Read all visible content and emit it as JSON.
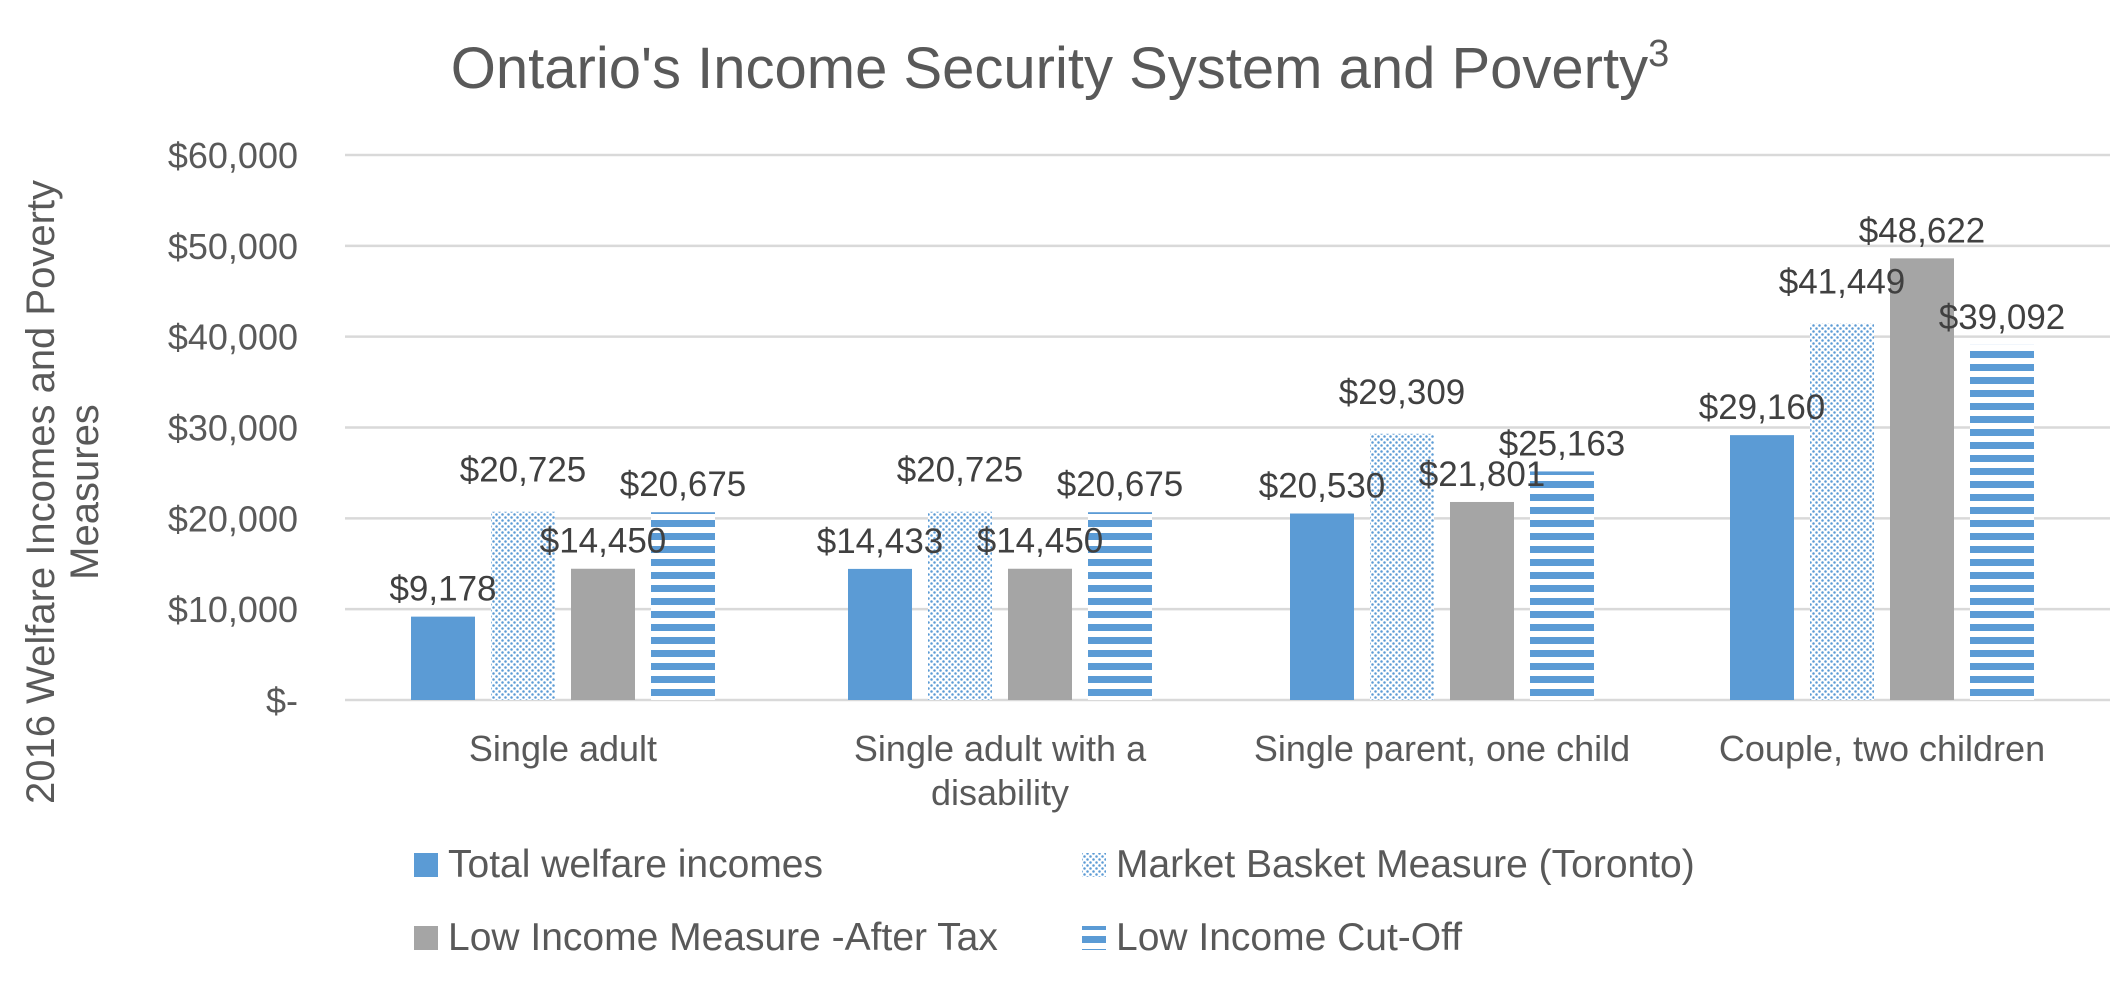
{
  "chart_data": {
    "type": "bar",
    "title": "Ontario's Income Security System and Poverty",
    "title_superscript": "3",
    "ylabel_lines": [
      "2016 Welfare Incomes and Poverty",
      "Measures"
    ],
    "xlabel": "",
    "categories": [
      [
        "Single adult"
      ],
      [
        "Single adult with a",
        "disability"
      ],
      [
        "Single parent, one child"
      ],
      [
        "Couple, two children"
      ]
    ],
    "ylim": [
      0,
      60000
    ],
    "yticks": [
      {
        "value": 0,
        "label": "$-"
      },
      {
        "value": 10000,
        "label": "$10,000"
      },
      {
        "value": 20000,
        "label": "$20,000"
      },
      {
        "value": 30000,
        "label": "$30,000"
      },
      {
        "value": 40000,
        "label": "$40,000"
      },
      {
        "value": 50000,
        "label": "$50,000"
      },
      {
        "value": 60000,
        "label": "$60,000"
      }
    ],
    "grid": true,
    "legend_position": "bottom",
    "series": [
      {
        "name": "Total welfare incomes",
        "pattern": "solid",
        "color": "#5B9BD5",
        "values": [
          9178,
          14433,
          20530,
          29160
        ],
        "labels": [
          "$9,178",
          "$14,433",
          "$20,530",
          "$29,160"
        ]
      },
      {
        "name": "Market Basket Measure (Toronto)",
        "pattern": "dots",
        "color": "#5B9BD5",
        "values": [
          20725,
          20725,
          29309,
          41449
        ],
        "labels": [
          "$20,725",
          "$20,725",
          "$29,309",
          "$41,449"
        ]
      },
      {
        "name": "Low Income Measure -After Tax",
        "pattern": "solid",
        "color": "#A5A5A5",
        "values": [
          14450,
          14450,
          21801,
          48622
        ],
        "labels": [
          "$14,450",
          "$14,450",
          "$21,801",
          "$48,622"
        ]
      },
      {
        "name": "Low Income Cut-Off",
        "pattern": "horizontal-stripes",
        "color": "#5B9BD5",
        "values": [
          20675,
          20675,
          25163,
          39092
        ],
        "labels": [
          "$20,675",
          "$20,675",
          "$25,163",
          "$39,092"
        ]
      }
    ],
    "colors": {
      "text": "#595959",
      "data_label": "#404040",
      "grid": "#D9D9D9",
      "blue": "#5B9BD5",
      "gray": "#A5A5A5"
    }
  }
}
